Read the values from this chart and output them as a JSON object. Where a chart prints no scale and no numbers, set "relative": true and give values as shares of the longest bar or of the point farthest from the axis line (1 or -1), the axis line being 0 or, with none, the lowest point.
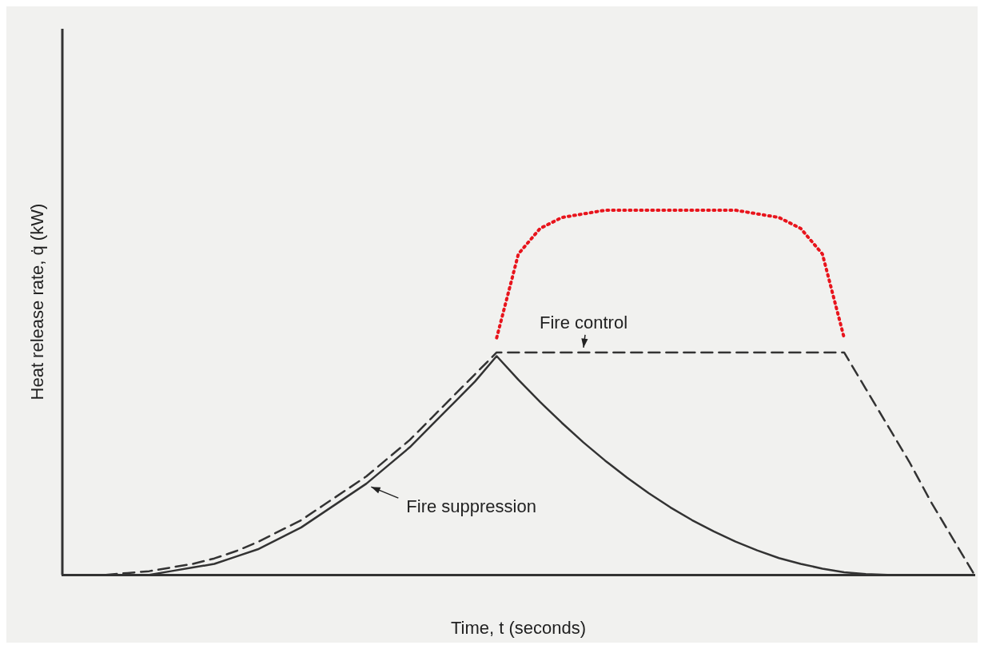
{
  "chart_data": {
    "type": "line",
    "relative": true,
    "xlabel": "Time, t (seconds)",
    "ylabel": "Heat release rate, q̇ (kW)",
    "grid": false,
    "legend": false,
    "marker": "none",
    "categories": [
      null,
      null,
      null,
      null,
      null,
      null,
      null,
      null,
      null,
      null,
      null,
      null,
      null,
      null,
      null,
      null,
      null,
      null,
      null,
      null,
      null,
      null,
      null,
      null,
      null,
      null,
      null,
      null,
      null,
      null,
      null,
      null,
      null,
      null,
      null,
      null,
      null,
      null,
      null,
      null,
      null,
      null,
      null
    ],
    "series": [
      {
        "name": "Fire suppression",
        "color": "#333333",
        "line_style": "solid",
        "values": [
          null,
          null,
          null,
          0,
          0,
          0.01,
          0.02,
          0.03,
          0.05,
          0.07,
          0.1,
          0.13,
          0.17,
          0.21,
          0.25,
          0.3,
          0.35,
          0.41,
          0.47,
          0.53,
          0.6,
          0.535,
          0.474,
          0.417,
          0.363,
          0.313,
          0.267,
          0.224,
          0.185,
          0.15,
          0.119,
          0.091,
          0.067,
          0.046,
          0.03,
          0.017,
          0.007,
          0.002,
          0,
          null,
          null,
          null,
          null
        ]
      },
      {
        "name": "Fire control",
        "color": "#333333",
        "line_style": "dashed",
        "values": [
          null,
          null,
          0,
          0.005,
          0.01,
          0.02,
          0.03,
          0.045,
          0.065,
          0.09,
          0.12,
          0.15,
          0.19,
          0.23,
          0.27,
          0.32,
          0.37,
          0.43,
          0.49,
          0.55,
          0.61,
          0.61,
          0.61,
          0.61,
          0.61,
          0.61,
          0.61,
          0.61,
          0.61,
          0.61,
          0.61,
          0.61,
          0.61,
          0.61,
          0.61,
          0.61,
          0.61,
          0.51,
          0.41,
          0.31,
          0.2,
          0.1,
          0
        ]
      },
      {
        "color": "#e8141c",
        "line_style": "dotted",
        "values": [
          null,
          null,
          null,
          null,
          null,
          null,
          null,
          null,
          null,
          null,
          null,
          null,
          null,
          null,
          null,
          null,
          null,
          null,
          null,
          null,
          0.65,
          0.88,
          0.95,
          0.98,
          0.99,
          1,
          1,
          1,
          1,
          1,
          1,
          1,
          0.99,
          0.98,
          0.95,
          0.88,
          0.65,
          null,
          null,
          null,
          null,
          null,
          null
        ]
      }
    ]
  }
}
